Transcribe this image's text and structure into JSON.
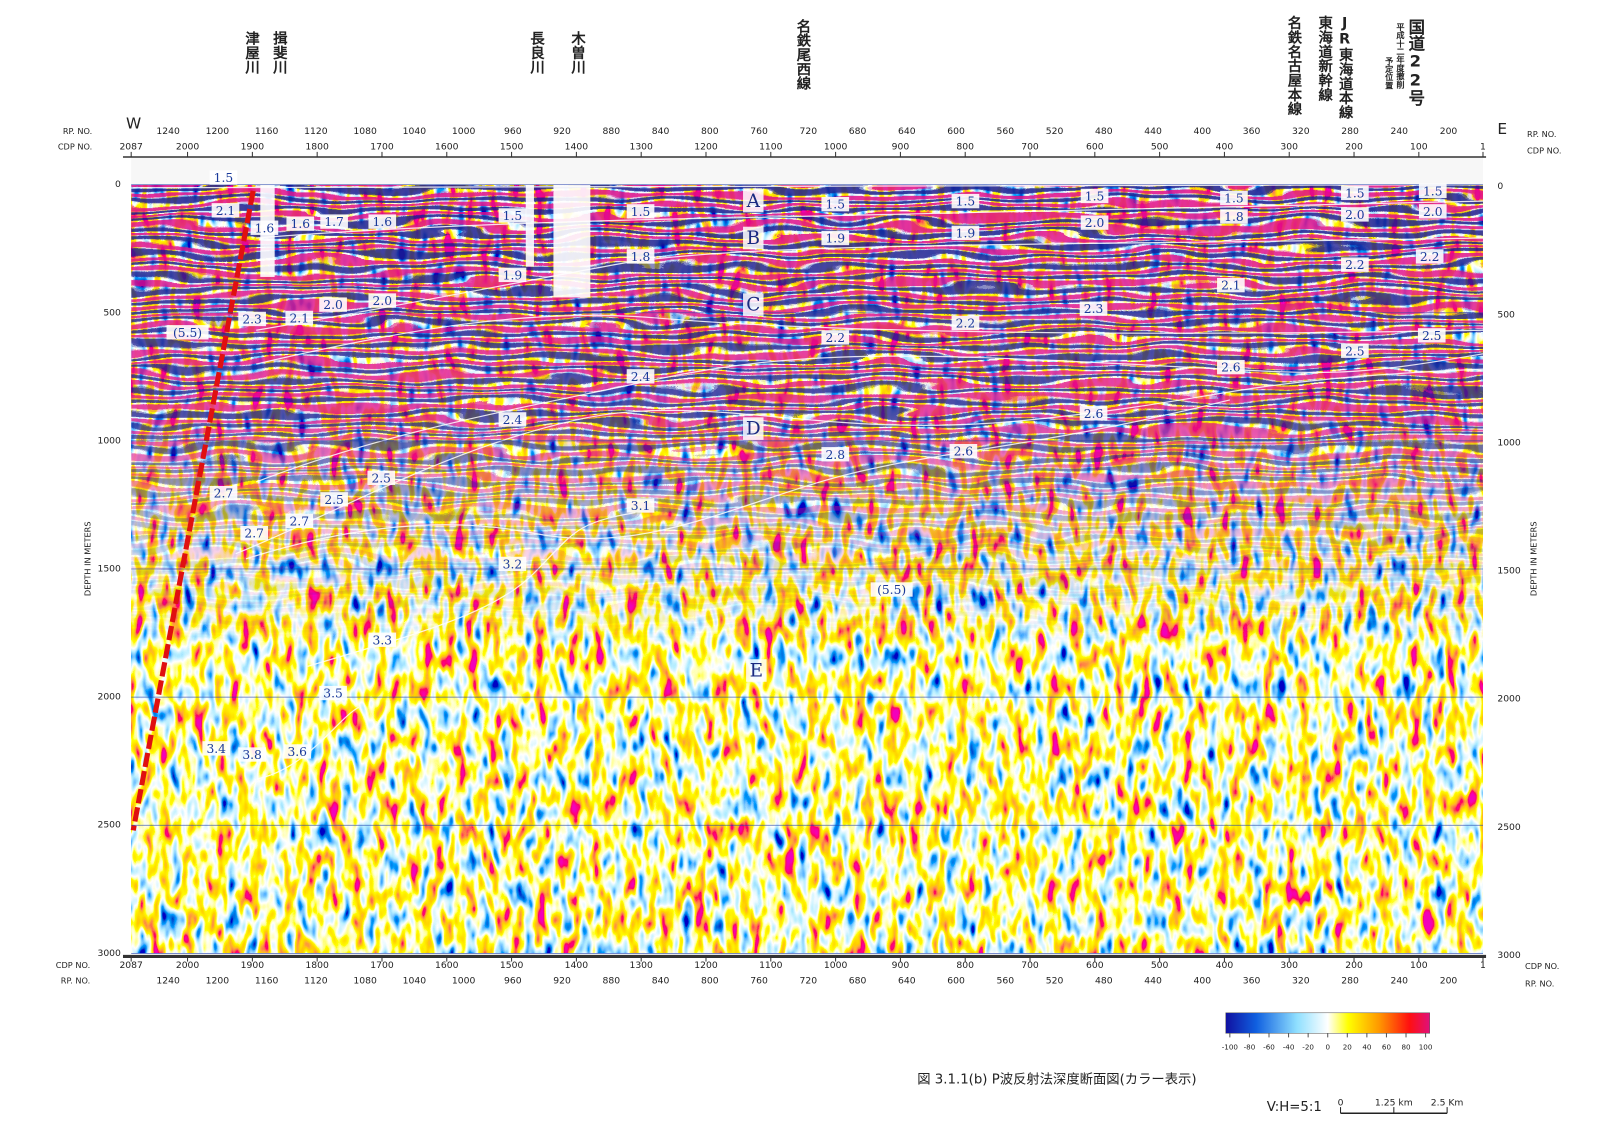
{
  "header": {
    "direction_west": "W",
    "direction_east": "E"
  },
  "place_labels": [
    "揖斐川",
    "津屋川",
    "木曽川",
    "長良川",
    "名鉄尾西線",
    "JR東海道本線",
    "東海道新幹線",
    "名鉄名古屋本線",
    "国道22号",
    "平成十二年度撤削",
    "予定位置"
  ],
  "axes": {
    "rp_label": "RP. NO.",
    "cdp_label": "CDP NO.",
    "depth_label": "DEPTH IN METERS",
    "cdp_lim": [
      2087,
      1
    ],
    "cdp_ticks": [
      2087,
      2000,
      1900,
      1800,
      1700,
      1600,
      1500,
      1400,
      1300,
      1200,
      1100,
      1000,
      900,
      800,
      700,
      600,
      500,
      400,
      300,
      200,
      100,
      1
    ],
    "rp_lim": [
      1270,
      172
    ],
    "rp_ticks": [
      1240,
      1200,
      1160,
      1120,
      1080,
      1040,
      1000,
      960,
      920,
      880,
      840,
      800,
      760,
      720,
      680,
      640,
      600,
      560,
      520,
      480,
      440,
      400,
      360,
      320,
      280,
      240,
      200
    ],
    "depth_lim": [
      0,
      3000
    ],
    "depth_ticks": [
      0,
      500,
      1000,
      1500,
      2000,
      2500,
      3000
    ]
  },
  "horizons": [
    "A",
    "B",
    "C",
    "D",
    "E"
  ],
  "velocity_labels": [
    "1.5",
    "2.1",
    "1.6",
    "1.6",
    "1.7",
    "1.6",
    "1.5",
    "1.5",
    "1.5",
    "1.5",
    "1.5",
    "1.5",
    "1.5",
    "1.5",
    "1.9",
    "1.9",
    "2.0",
    "1.8",
    "2.0",
    "2.0",
    "1.8",
    "1.9",
    "2.2",
    "2.2",
    "2.1",
    "(5.5)",
    "2.3",
    "2.1",
    "2.0",
    "2.0",
    "2.3",
    "2.2",
    "2.2",
    "2.5",
    "2.5",
    "2.6",
    "2.4",
    "2.4",
    "2.6",
    "2.8",
    "2.6",
    "2.5",
    "2.7",
    "2.5",
    "2.7",
    "2.7",
    "3.1",
    "3.2",
    "(5.5)",
    "3.3",
    "3.5",
    "3.4",
    "3.8",
    "3.6"
  ],
  "colorbar": {
    "lim": [
      -100,
      100
    ],
    "ticks": [
      -100,
      -80,
      -60,
      -40,
      -20,
      0,
      20,
      40,
      60,
      80,
      100
    ]
  },
  "caption": "図 3.1.1(b)  P波反射法深度断面図(カラー表示)",
  "scale": {
    "ratio": "V:H=5:1",
    "lim": [
      0,
      2.5
    ],
    "ticks": [
      0,
      {
        "value": 1.25,
        "label": "1.25 km"
      },
      {
        "value": 2.5,
        "label": "2.5 Km"
      }
    ]
  }
}
